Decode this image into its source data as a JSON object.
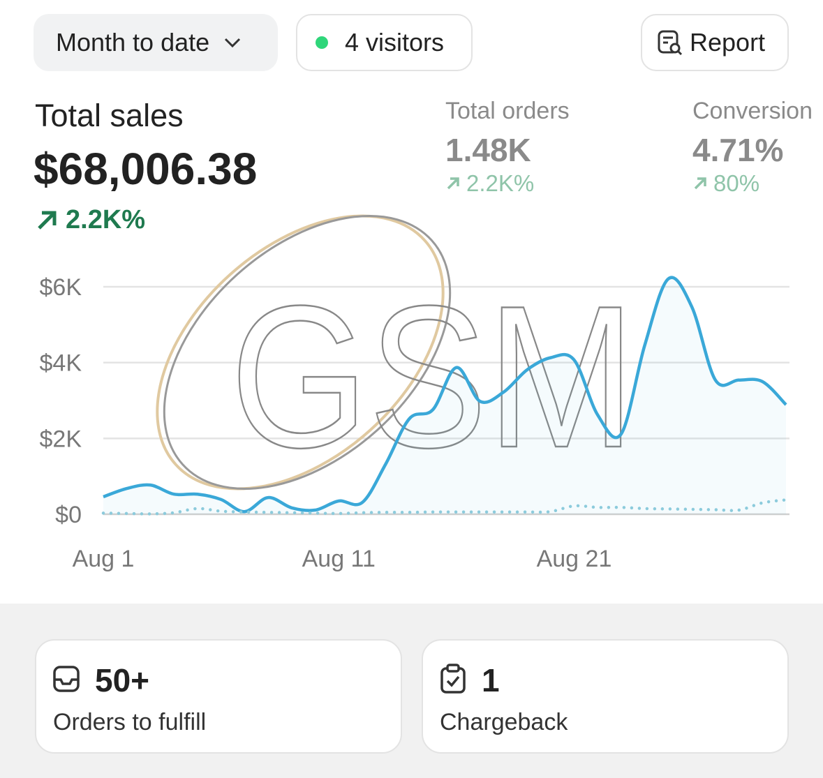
{
  "filters": {
    "period": "Month to date",
    "visitors": "4 visitors",
    "report": "Report"
  },
  "metrics": [
    {
      "label": "Total sales",
      "value": "$68,006.38",
      "change": "2.2K%"
    },
    {
      "label": "Total orders",
      "value": "1.48K",
      "change": "2.2K%"
    },
    {
      "label": "Conversion",
      "value": "4.71%",
      "change": "80%"
    }
  ],
  "chart_data": {
    "type": "line",
    "categories": [
      "Aug 1",
      null,
      null,
      null,
      null,
      null,
      null,
      null,
      null,
      null,
      "Aug 11",
      null,
      null,
      null,
      null,
      null,
      null,
      null,
      null,
      null,
      "Aug 21",
      null,
      null,
      null,
      null,
      null,
      null,
      null,
      null,
      null
    ],
    "series": [
      {
        "color": "#3aa8d8",
        "values": [
          460,
          680,
          770,
          530,
          530,
          390,
          70,
          440,
          170,
          110,
          350,
          310,
          1330,
          2520,
          2760,
          3870,
          2980,
          3220,
          3810,
          4130,
          4070,
          2620,
          2120,
          4460,
          6210,
          5470,
          3540,
          3540,
          3500,
          2890
        ]
      },
      {
        "color": "#8ccbdc",
        "values": [
          30,
          20,
          10,
          40,
          150,
          80,
          60,
          50,
          40,
          30,
          20,
          40,
          50,
          50,
          60,
          60,
          60,
          60,
          60,
          70,
          220,
          180,
          180,
          150,
          140,
          130,
          120,
          110,
          300,
          380
        ]
      }
    ],
    "ylim": [
      0,
      6400
    ],
    "yticks": [
      {
        "value": 0,
        "label": "$0"
      },
      {
        "value": 2000,
        "label": "$2K"
      },
      {
        "value": 4000,
        "label": "$4K"
      },
      {
        "value": 6000,
        "label": "$6K"
      }
    ],
    "grid": true
  },
  "watermark": "GSM",
  "cards": [
    {
      "value": "50+",
      "label": "Orders to fulfill"
    },
    {
      "value": "1",
      "label": "Chargeback"
    }
  ]
}
